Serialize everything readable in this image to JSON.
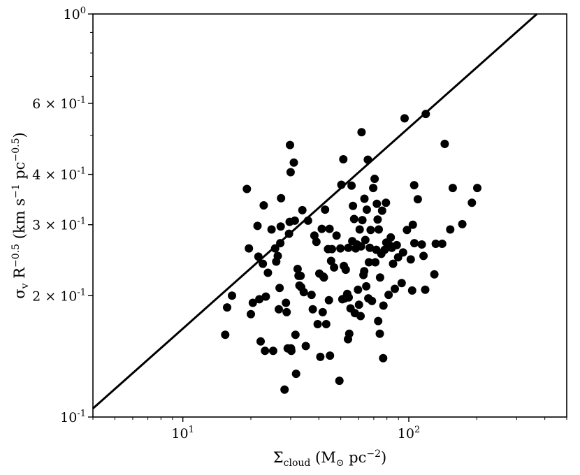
{
  "chart_data": {
    "type": "scatter",
    "title": "",
    "xscale": "log",
    "yscale": "log",
    "xlim": [
      4.0,
      500
    ],
    "ylim": [
      0.1,
      1.0
    ],
    "grid": false,
    "legend": "none",
    "xlabel": {
      "main": "Σ",
      "sub": "cloud",
      "rest": " (M",
      "sun": "⊙",
      "rest2": " pc",
      "sup": "−2",
      "close": ")"
    },
    "ylabel": {
      "main": "σ",
      "sub": "v",
      "rest": " R",
      "sup": "−0.5",
      "rest2": " (km s",
      "sup2": "−1",
      "rest3": " pc",
      "sup3": "−0.5",
      "close": ")"
    },
    "x_ticks": [
      {
        "value": 10,
        "base": "10",
        "exp": "1"
      },
      {
        "value": 100,
        "base": "10",
        "exp": "2"
      }
    ],
    "y_ticks": [
      {
        "value": 0.1,
        "base": "10",
        "exp": "-1"
      },
      {
        "value": 0.2,
        "coef": "2 × 10",
        "exp": "-1"
      },
      {
        "value": 0.3,
        "coef": "3 × 10",
        "exp": "-1"
      },
      {
        "value": 0.4,
        "coef": "4 × 10",
        "exp": "-1"
      },
      {
        "value": 0.6,
        "coef": "6 × 10",
        "exp": "-1"
      },
      {
        "value": 1.0,
        "base": "10",
        "exp": "0"
      }
    ],
    "line": {
      "points": [
        [
          4.0,
          0.105
        ],
        [
          369,
          1.0
        ]
      ],
      "color": "#000000"
    },
    "marker_color": "#000000",
    "points": [
      [
        15.4,
        0.16
      ],
      [
        15.7,
        0.187
      ],
      [
        16.5,
        0.2
      ],
      [
        19.2,
        0.368
      ],
      [
        19.6,
        0.262
      ],
      [
        20.0,
        0.18
      ],
      [
        20.4,
        0.192
      ],
      [
        21.4,
        0.298
      ],
      [
        21.6,
        0.25
      ],
      [
        21.8,
        0.196
      ],
      [
        22.1,
        0.154
      ],
      [
        22.6,
        0.24
      ],
      [
        22.8,
        0.335
      ],
      [
        23.1,
        0.146
      ],
      [
        23.3,
        0.199
      ],
      [
        23.8,
        0.228
      ],
      [
        24.7,
        0.292
      ],
      [
        25.1,
        0.146
      ],
      [
        25.6,
        0.262
      ],
      [
        25.9,
        0.243
      ],
      [
        26.3,
        0.251
      ],
      [
        26.6,
        0.185
      ],
      [
        26.8,
        0.209
      ],
      [
        27.0,
        0.27
      ],
      [
        27.1,
        0.297
      ],
      [
        27.2,
        0.349
      ],
      [
        28.2,
        0.117
      ],
      [
        28.6,
        0.192
      ],
      [
        28.8,
        0.182
      ],
      [
        29.1,
        0.148
      ],
      [
        29.5,
        0.285
      ],
      [
        29.7,
        0.305
      ],
      [
        29.8,
        0.473
      ],
      [
        30.0,
        0.405
      ],
      [
        30.1,
        0.148
      ],
      [
        30.2,
        0.146
      ],
      [
        31.0,
        0.428
      ],
      [
        31.3,
        0.307
      ],
      [
        31.5,
        0.16
      ],
      [
        31.7,
        0.128
      ],
      [
        32.2,
        0.233
      ],
      [
        32.5,
        0.224
      ],
      [
        32.8,
        0.212
      ],
      [
        33.2,
        0.224
      ],
      [
        33.4,
        0.21
      ],
      [
        33.8,
        0.326
      ],
      [
        34.3,
        0.204
      ],
      [
        35.0,
        0.15
      ],
      [
        35.8,
        0.307
      ],
      [
        37.1,
        0.201
      ],
      [
        37.6,
        0.185
      ],
      [
        38.2,
        0.282
      ],
      [
        39.0,
        0.272
      ],
      [
        39.5,
        0.17
      ],
      [
        40.2,
        0.227
      ],
      [
        40.6,
        0.141
      ],
      [
        41.2,
        0.293
      ],
      [
        41.6,
        0.182
      ],
      [
        41.9,
        0.223
      ],
      [
        42.1,
        0.222
      ],
      [
        42.6,
        0.327
      ],
      [
        43.1,
        0.17
      ],
      [
        43.9,
        0.261
      ],
      [
        44.3,
        0.195
      ],
      [
        44.6,
        0.293
      ],
      [
        44.8,
        0.142
      ],
      [
        45.3,
        0.244
      ],
      [
        45.7,
        0.261
      ],
      [
        46.7,
        0.235
      ],
      [
        47.9,
        0.282
      ],
      [
        49.3,
        0.123
      ],
      [
        49.8,
        0.262
      ],
      [
        50.3,
        0.377
      ],
      [
        50.8,
        0.196
      ],
      [
        51.3,
        0.436
      ],
      [
        51.6,
        0.237
      ],
      [
        52.1,
        0.197
      ],
      [
        52.6,
        0.232
      ],
      [
        53.4,
        0.202
      ],
      [
        53.8,
        0.156
      ],
      [
        54.0,
        0.263
      ],
      [
        54.2,
        0.198
      ],
      [
        54.5,
        0.161
      ],
      [
        55.2,
        0.186
      ],
      [
        55.8,
        0.375
      ],
      [
        56.2,
        0.273
      ],
      [
        56.6,
        0.334
      ],
      [
        57.3,
        0.31
      ],
      [
        57.7,
        0.181
      ],
      [
        58.2,
        0.262
      ],
      [
        59.0,
        0.268
      ],
      [
        59.6,
        0.207
      ],
      [
        60.2,
        0.19
      ],
      [
        60.6,
        0.292
      ],
      [
        61.2,
        0.178
      ],
      [
        61.5,
        0.265
      ],
      [
        61.8,
        0.509
      ],
      [
        62.3,
        0.308
      ],
      [
        63.0,
        0.225
      ],
      [
        63.5,
        0.23
      ],
      [
        63.6,
        0.348
      ],
      [
        64.2,
        0.275
      ],
      [
        64.8,
        0.211
      ],
      [
        65.2,
        0.327
      ],
      [
        65.9,
        0.435
      ],
      [
        66.2,
        0.197
      ],
      [
        66.6,
        0.242
      ],
      [
        67.2,
        0.263
      ],
      [
        67.8,
        0.291
      ],
      [
        68.7,
        0.194
      ],
      [
        69.6,
        0.37
      ],
      [
        70.6,
        0.39
      ],
      [
        71.1,
        0.242
      ],
      [
        71.8,
        0.26
      ],
      [
        72.2,
        0.338
      ],
      [
        72.8,
        0.309
      ],
      [
        73.2,
        0.173
      ],
      [
        73.6,
        0.292
      ],
      [
        74.4,
        0.161
      ],
      [
        74.6,
        0.222
      ],
      [
        75.6,
        0.254
      ],
      [
        76.2,
        0.325
      ],
      [
        77.0,
        0.14
      ],
      [
        77.2,
        0.189
      ],
      [
        78.2,
        0.26
      ],
      [
        79.2,
        0.34
      ],
      [
        79.5,
        0.271
      ],
      [
        81.4,
        0.201
      ],
      [
        82.0,
        0.267
      ],
      [
        83.2,
        0.279
      ],
      [
        84.1,
        0.263
      ],
      [
        85.2,
        0.24
      ],
      [
        86.7,
        0.208
      ],
      [
        88.5,
        0.267
      ],
      [
        89.7,
        0.249
      ],
      [
        93.0,
        0.215
      ],
      [
        94.3,
        0.256
      ],
      [
        95.8,
        0.551
      ],
      [
        98.2,
        0.291
      ],
      [
        102.0,
        0.246
      ],
      [
        103.5,
        0.206
      ],
      [
        104.2,
        0.3
      ],
      [
        105.6,
        0.376
      ],
      [
        105.9,
        0.27
      ],
      [
        109.6,
        0.347
      ],
      [
        114.2,
        0.268
      ],
      [
        116.2,
        0.251
      ],
      [
        118.2,
        0.207
      ],
      [
        118.9,
        0.565
      ],
      [
        129.8,
        0.226
      ],
      [
        131.6,
        0.269
      ],
      [
        140.6,
        0.269
      ],
      [
        144.2,
        0.476
      ],
      [
        152.5,
        0.292
      ],
      [
        156.5,
        0.37
      ],
      [
        172.6,
        0.301
      ],
      [
        190.2,
        0.34
      ],
      [
        200.9,
        0.37
      ]
    ]
  }
}
